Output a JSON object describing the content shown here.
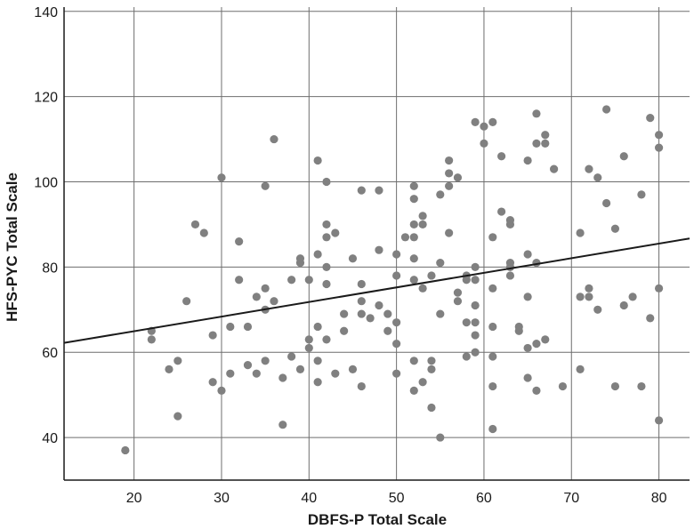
{
  "chart_data": {
    "type": "scatter",
    "xlabel": "DBFS-P Total Scale",
    "ylabel": "HFS-PYC Total Scale",
    "xlim": [
      12,
      83.5
    ],
    "ylim": [
      30,
      141
    ],
    "x_ticks": [
      20,
      30,
      40,
      50,
      60,
      70,
      80
    ],
    "y_ticks": [
      40,
      60,
      80,
      100,
      120,
      140
    ],
    "grid": true,
    "point_color": "#808080",
    "line_color": "#1a1a1a",
    "trend_line": {
      "x": [
        12,
        83.5
      ],
      "y": [
        62.2,
        86.7
      ]
    },
    "points": [
      [
        19,
        37
      ],
      [
        22,
        65
      ],
      [
        22,
        63
      ],
      [
        24,
        56
      ],
      [
        25,
        58
      ],
      [
        25,
        45
      ],
      [
        26,
        72
      ],
      [
        27,
        90
      ],
      [
        28,
        88
      ],
      [
        29,
        64
      ],
      [
        29,
        53
      ],
      [
        30,
        101
      ],
      [
        30,
        51
      ],
      [
        31,
        66
      ],
      [
        31,
        55
      ],
      [
        32,
        86
      ],
      [
        32,
        77
      ],
      [
        33,
        66
      ],
      [
        33,
        57
      ],
      [
        34,
        73
      ],
      [
        34,
        55
      ],
      [
        35,
        99
      ],
      [
        35,
        75
      ],
      [
        35,
        70
      ],
      [
        35,
        58
      ],
      [
        36,
        110
      ],
      [
        36,
        72
      ],
      [
        37,
        54
      ],
      [
        37,
        43
      ],
      [
        38,
        77
      ],
      [
        38,
        59
      ],
      [
        39,
        82
      ],
      [
        39,
        81
      ],
      [
        39,
        56
      ],
      [
        40,
        77
      ],
      [
        40,
        63
      ],
      [
        40,
        61
      ],
      [
        41,
        105
      ],
      [
        41,
        83
      ],
      [
        41,
        66
      ],
      [
        41,
        58
      ],
      [
        41,
        53
      ],
      [
        42,
        100
      ],
      [
        42,
        90
      ],
      [
        42,
        87
      ],
      [
        42,
        80
      ],
      [
        42,
        76
      ],
      [
        42,
        63
      ],
      [
        43,
        88
      ],
      [
        43,
        55
      ],
      [
        44,
        69
      ],
      [
        44,
        65
      ],
      [
        45,
        82
      ],
      [
        45,
        56
      ],
      [
        46,
        98
      ],
      [
        46,
        76
      ],
      [
        46,
        72
      ],
      [
        46,
        69
      ],
      [
        46,
        52
      ],
      [
        47,
        68
      ],
      [
        48,
        98
      ],
      [
        48,
        84
      ],
      [
        48,
        71
      ],
      [
        49,
        69
      ],
      [
        49,
        65
      ],
      [
        50,
        83
      ],
      [
        50,
        78
      ],
      [
        50,
        67
      ],
      [
        50,
        62
      ],
      [
        50,
        55
      ],
      [
        51,
        87
      ],
      [
        52,
        99
      ],
      [
        52,
        96
      ],
      [
        52,
        90
      ],
      [
        52,
        87
      ],
      [
        52,
        82
      ],
      [
        52,
        77
      ],
      [
        52,
        58
      ],
      [
        52,
        51
      ],
      [
        53,
        92
      ],
      [
        53,
        90
      ],
      [
        53,
        75
      ],
      [
        53,
        53
      ],
      [
        54,
        78
      ],
      [
        54,
        58
      ],
      [
        54,
        56
      ],
      [
        54,
        47
      ],
      [
        55,
        97
      ],
      [
        55,
        81
      ],
      [
        55,
        69
      ],
      [
        55,
        40
      ],
      [
        56,
        105
      ],
      [
        56,
        102
      ],
      [
        56,
        99
      ],
      [
        56,
        88
      ],
      [
        57,
        101
      ],
      [
        57,
        74
      ],
      [
        57,
        72
      ],
      [
        58,
        78
      ],
      [
        58,
        77
      ],
      [
        58,
        67
      ],
      [
        58,
        59
      ],
      [
        59,
        114
      ],
      [
        59,
        80
      ],
      [
        59,
        77
      ],
      [
        59,
        71
      ],
      [
        59,
        67
      ],
      [
        59,
        64
      ],
      [
        59,
        60
      ],
      [
        60,
        113
      ],
      [
        60,
        109
      ],
      [
        61,
        114
      ],
      [
        61,
        87
      ],
      [
        61,
        75
      ],
      [
        61,
        66
      ],
      [
        61,
        59
      ],
      [
        61,
        52
      ],
      [
        61,
        42
      ],
      [
        62,
        106
      ],
      [
        62,
        93
      ],
      [
        63,
        91
      ],
      [
        63,
        90
      ],
      [
        63,
        81
      ],
      [
        63,
        80
      ],
      [
        63,
        78
      ],
      [
        64,
        66
      ],
      [
        64,
        65
      ],
      [
        65,
        105
      ],
      [
        65,
        83
      ],
      [
        65,
        73
      ],
      [
        65,
        61
      ],
      [
        65,
        54
      ],
      [
        66,
        116
      ],
      [
        66,
        109
      ],
      [
        66,
        81
      ],
      [
        66,
        62
      ],
      [
        66,
        51
      ],
      [
        67,
        111
      ],
      [
        67,
        109
      ],
      [
        67,
        63
      ],
      [
        68,
        103
      ],
      [
        69,
        52
      ],
      [
        71,
        88
      ],
      [
        71,
        73
      ],
      [
        71,
        56
      ],
      [
        72,
        103
      ],
      [
        72,
        75
      ],
      [
        72,
        73
      ],
      [
        73,
        101
      ],
      [
        73,
        70
      ],
      [
        74,
        117
      ],
      [
        74,
        95
      ],
      [
        75,
        89
      ],
      [
        75,
        52
      ],
      [
        76,
        106
      ],
      [
        76,
        71
      ],
      [
        77,
        73
      ],
      [
        78,
        97
      ],
      [
        78,
        52
      ],
      [
        79,
        115
      ],
      [
        79,
        68
      ],
      [
        80,
        111
      ],
      [
        80,
        108
      ],
      [
        80,
        75
      ],
      [
        80,
        44
      ]
    ]
  }
}
